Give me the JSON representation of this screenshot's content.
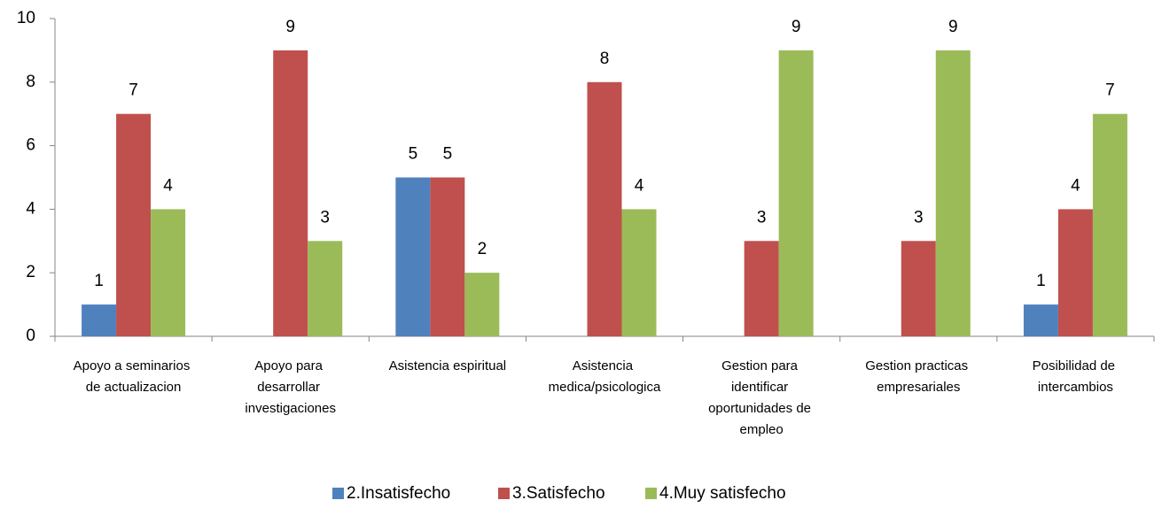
{
  "chart_data": {
    "type": "bar",
    "categories": [
      "Apoyo a seminarios de actualizacion",
      "Apoyo para desarrollar investigaciones",
      "Asistencia espiritual",
      "Asistencia medica/psicologica",
      "Gestion para identificar oportunidades de empleo",
      "Gestion practicas empresariales",
      "Posibilidad de intercambios"
    ],
    "series": [
      {
        "name": "2.Insatisfecho",
        "color": "#4f81bd",
        "values": [
          1,
          null,
          5,
          null,
          null,
          null,
          1
        ]
      },
      {
        "name": "3.Satisfecho",
        "color": "#c0504d",
        "values": [
          7,
          9,
          5,
          8,
          3,
          3,
          4
        ]
      },
      {
        "name": "4.Muy satisfecho",
        "color": "#9bbb59",
        "values": [
          4,
          3,
          2,
          4,
          9,
          9,
          7
        ]
      }
    ],
    "ylim": [
      0,
      10
    ],
    "yticks": [
      0,
      2,
      4,
      6,
      8,
      10
    ],
    "legend": "bottom"
  }
}
